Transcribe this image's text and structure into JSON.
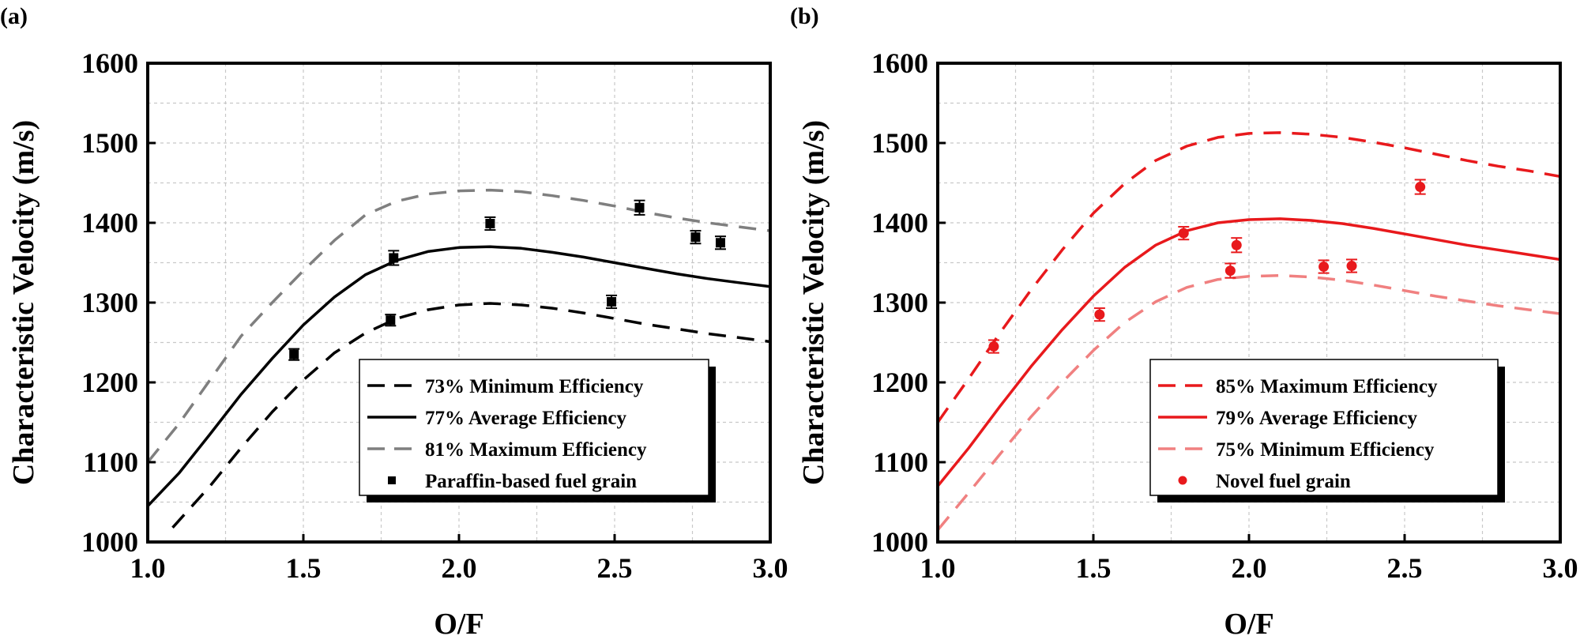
{
  "chart_data": [
    {
      "panel": "(a)",
      "type": "line",
      "xlabel": "O/F",
      "ylabel": "Characteristic Velocity (m/s)",
      "xlim": [
        1.0,
        3.0
      ],
      "ylim": [
        1000,
        1600
      ],
      "xticks": [
        "1.0",
        "1.5",
        "2.0",
        "2.5",
        "3.0"
      ],
      "yticks": [
        "1000",
        "1100",
        "1200",
        "1300",
        "1400",
        "1500",
        "1600"
      ],
      "grid": true,
      "legend_position": "bottom-right",
      "series": [
        {
          "name": "73% Minimum Efficiency",
          "style": "dashed",
          "color": "#000000",
          "x": [
            1.08,
            1.2,
            1.3,
            1.4,
            1.5,
            1.6,
            1.7,
            1.8,
            1.9,
            2.0,
            2.1,
            2.2,
            2.3,
            2.4,
            2.5,
            2.6,
            2.7,
            2.8,
            2.9,
            3.0
          ],
          "y": [
            1018,
            1070,
            1118,
            1163,
            1203,
            1237,
            1262,
            1280,
            1291,
            1297,
            1299,
            1297,
            1293,
            1287,
            1280,
            1273,
            1267,
            1261,
            1256,
            1251
          ]
        },
        {
          "name": "77% Average Efficiency",
          "style": "solid",
          "color": "#000000",
          "x": [
            1.0,
            1.1,
            1.2,
            1.3,
            1.4,
            1.5,
            1.6,
            1.7,
            1.8,
            1.9,
            2.0,
            2.1,
            2.2,
            2.3,
            2.4,
            2.5,
            2.6,
            2.7,
            2.8,
            2.9,
            3.0
          ],
          "y": [
            1045,
            1086,
            1135,
            1185,
            1230,
            1272,
            1307,
            1335,
            1353,
            1364,
            1369,
            1370,
            1368,
            1363,
            1357,
            1350,
            1343,
            1336,
            1330,
            1325,
            1320
          ]
        },
        {
          "name": "81% Maximum Efficiency",
          "style": "dashed",
          "color": "#7f7f7f",
          "x": [
            1.0,
            1.1,
            1.2,
            1.3,
            1.4,
            1.5,
            1.6,
            1.7,
            1.8,
            1.9,
            2.0,
            2.1,
            2.2,
            2.3,
            2.4,
            2.5,
            2.6,
            2.7,
            2.8,
            2.9,
            3.0
          ],
          "y": [
            1100,
            1148,
            1203,
            1258,
            1300,
            1340,
            1378,
            1410,
            1427,
            1436,
            1440,
            1441,
            1439,
            1434,
            1428,
            1421,
            1413,
            1406,
            1400,
            1395,
            1390
          ]
        },
        {
          "name": "Paraffin-based fuel grain",
          "style": "markers",
          "marker": "square",
          "color": "#000000",
          "x": [
            1.47,
            1.78,
            1.79,
            2.1,
            2.49,
            2.58,
            2.76,
            2.84
          ],
          "y": [
            1235,
            1278,
            1356,
            1399,
            1301,
            1419,
            1382,
            1375
          ],
          "err": [
            7,
            7,
            9,
            8,
            8,
            9,
            8,
            8
          ]
        }
      ]
    },
    {
      "panel": "(b)",
      "type": "line",
      "xlabel": "O/F",
      "ylabel": "Characteristic Velocity (m/s)",
      "xlim": [
        1.0,
        3.0
      ],
      "ylim": [
        1000,
        1600
      ],
      "xticks": [
        "1.0",
        "1.5",
        "2.0",
        "2.5",
        "3.0"
      ],
      "yticks": [
        "1000",
        "1100",
        "1200",
        "1300",
        "1400",
        "1500",
        "1600"
      ],
      "grid": true,
      "legend_position": "bottom-right",
      "series": [
        {
          "name": "85% Maximum Efficiency",
          "style": "dashed",
          "color": "#e8191c",
          "x": [
            1.0,
            1.1,
            1.2,
            1.3,
            1.4,
            1.5,
            1.6,
            1.7,
            1.8,
            1.9,
            2.0,
            2.1,
            2.2,
            2.3,
            2.4,
            2.5,
            2.6,
            2.7,
            2.8,
            2.9,
            3.0
          ],
          "y": [
            1150,
            1205,
            1262,
            1316,
            1366,
            1412,
            1449,
            1478,
            1496,
            1507,
            1512,
            1513,
            1511,
            1507,
            1501,
            1494,
            1486,
            1478,
            1471,
            1465,
            1458
          ]
        },
        {
          "name": "79% Average Efficiency",
          "style": "solid",
          "color": "#e8191c",
          "x": [
            1.0,
            1.1,
            1.2,
            1.3,
            1.4,
            1.5,
            1.6,
            1.7,
            1.8,
            1.9,
            2.0,
            2.1,
            2.2,
            2.3,
            2.4,
            2.5,
            2.6,
            2.7,
            2.8,
            2.9,
            3.0
          ],
          "y": [
            1070,
            1118,
            1170,
            1220,
            1266,
            1308,
            1344,
            1372,
            1390,
            1400,
            1404,
            1405,
            1403,
            1399,
            1393,
            1386,
            1379,
            1372,
            1366,
            1360,
            1354
          ]
        },
        {
          "name": "75% Minimum Efficiency",
          "style": "dashed",
          "color": "#f08080",
          "x": [
            1.0,
            1.1,
            1.2,
            1.3,
            1.4,
            1.5,
            1.6,
            1.7,
            1.8,
            1.9,
            2.0,
            2.1,
            2.2,
            2.3,
            2.4,
            2.5,
            2.6,
            2.7,
            2.8,
            2.9,
            3.0
          ],
          "y": [
            1015,
            1062,
            1110,
            1157,
            1200,
            1240,
            1275,
            1301,
            1319,
            1329,
            1333,
            1334,
            1332,
            1328,
            1322,
            1315,
            1308,
            1302,
            1296,
            1291,
            1286
          ]
        },
        {
          "name": "Novel fuel grain",
          "style": "markers",
          "marker": "circle",
          "color": "#e8191c",
          "x": [
            1.18,
            1.52,
            1.79,
            1.94,
            1.96,
            2.24,
            2.33,
            2.55
          ],
          "y": [
            1245,
            1285,
            1387,
            1340,
            1372,
            1345,
            1346,
            1445
          ],
          "err": [
            8,
            8,
            8,
            9,
            9,
            8,
            8,
            9
          ]
        }
      ]
    }
  ]
}
